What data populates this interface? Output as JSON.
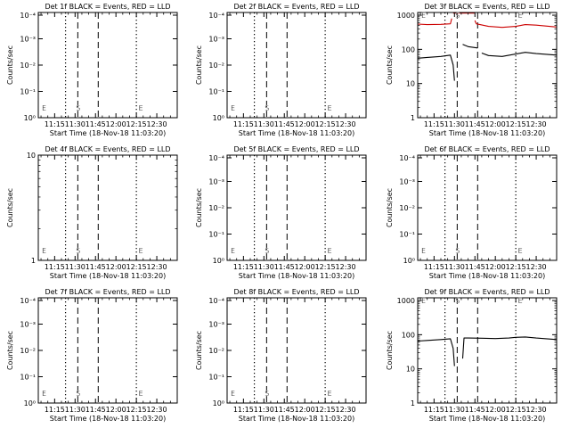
{
  "chart_data": [
    {
      "type": "line",
      "title": "Det 1f BLACK = Events, RED = LLD",
      "ylabel": "Counts/sec",
      "xlabel": "Start Time (18-Nov-18 11:03:20)",
      "y_ticks": [
        "10⁰",
        "10⁻¹",
        "10⁻²",
        "10⁻³",
        "10⁻⁴"
      ],
      "y_scale": "stacked",
      "x_ticks": [
        "11:15",
        "11:30",
        "11:45",
        "12:00",
        "12:15",
        "12:30"
      ],
      "markers": [
        {
          "label": "E",
          "time": "11:06"
        },
        {
          "label": "S",
          "time": "11:31"
        },
        {
          "label": "E",
          "time": "12:17"
        }
      ],
      "series": []
    },
    {
      "type": "line",
      "title": "Det 2f BLACK = Events, RED = LLD",
      "ylabel": "Counts/sec",
      "xlabel": "Start Time (18-Nov-18 11:03:20)",
      "y_ticks": [
        "10⁰",
        "10⁻¹",
        "10⁻²",
        "10⁻³",
        "10⁻⁴"
      ],
      "y_scale": "stacked",
      "x_ticks": [
        "11:15",
        "11:30",
        "11:45",
        "12:00",
        "12:15",
        "12:30"
      ],
      "markers": [
        {
          "label": "E",
          "time": "11:06"
        },
        {
          "label": "S",
          "time": "11:31"
        },
        {
          "label": "E",
          "time": "12:17"
        }
      ],
      "series": []
    },
    {
      "type": "line",
      "title": "Det 3f BLACK = Events, RED = LLD",
      "ylabel": "Counts/sec",
      "xlabel": "Start Time (18-Nov-18 11:03:20)",
      "y_ticks": [
        "1",
        "10",
        "100",
        "1000"
      ],
      "y_scale": "log",
      "ylim": [
        1,
        1200
      ],
      "x_ticks": [
        "11:15",
        "11:30",
        "11:45",
        "12:00",
        "12:15",
        "12:30"
      ],
      "markers": [
        {
          "label": "E",
          "time": "11:06"
        },
        {
          "label": "S",
          "time": "11:31"
        },
        {
          "label": "E",
          "time": "12:17"
        }
      ],
      "series": [
        {
          "color": "#cc0000",
          "segments": [
            {
              "x": [
                "11:03",
                "11:10",
                "11:20",
                "11:27",
                "11:28"
              ],
              "y": [
                550,
                530,
                540,
                560,
                800
              ]
            },
            {
              "x": [
                "11:29",
                "11:30",
                "11:40",
                "11:45"
              ],
              "y": [
                1150,
                1150,
                1150,
                1150
              ]
            },
            {
              "x": [
                "11:45",
                "11:46",
                "11:55",
                "12:05",
                "12:15",
                "12:22",
                "12:30",
                "12:45"
              ],
              "y": [
                700,
                560,
                470,
                440,
                470,
                530,
                510,
                450
              ]
            }
          ]
        },
        {
          "color": "#000000",
          "segments": [
            {
              "x": [
                "11:03",
                "11:10",
                "11:20",
                "11:27",
                "11:29",
                "11:30"
              ],
              "y": [
                55,
                58,
                62,
                68,
                35,
                12
              ]
            },
            {
              "x": [
                "11:36",
                "11:38",
                "11:40",
                "11:47"
              ],
              "y": [
                140,
                130,
                120,
                110
              ]
            },
            {
              "x": [
                "11:50",
                "11:55",
                "12:05",
                "12:15",
                "12:22",
                "12:30",
                "12:45"
              ],
              "y": [
                78,
                66,
                62,
                73,
                82,
                75,
                68
              ]
            }
          ]
        }
      ]
    },
    {
      "type": "line",
      "title": "Det 4f BLACK = Events, RED = LLD",
      "ylabel": "Counts/sec",
      "xlabel": "Start Time (18-Nov-18 11:03:20)",
      "y_ticks": [
        "1",
        "10"
      ],
      "y_scale": "log",
      "ylim": [
        1,
        10
      ],
      "x_ticks": [
        "11:15",
        "11:30",
        "11:45",
        "12:00",
        "12:15",
        "12:30"
      ],
      "markers": [
        {
          "label": "E",
          "time": "11:06"
        },
        {
          "label": "S",
          "time": "11:31"
        },
        {
          "label": "E",
          "time": "12:17"
        }
      ],
      "series": []
    },
    {
      "type": "line",
      "title": "Det 5f BLACK = Events, RED = LLD",
      "ylabel": "Counts/sec",
      "xlabel": "Start Time (18-Nov-18 11:03:20)",
      "y_ticks": [
        "10⁰",
        "10⁻¹",
        "10⁻²",
        "10⁻³",
        "10⁻⁴"
      ],
      "y_scale": "stacked",
      "x_ticks": [
        "11:15",
        "11:30",
        "11:45",
        "12:00",
        "12:15",
        "12:30"
      ],
      "markers": [
        {
          "label": "E",
          "time": "11:06"
        },
        {
          "label": "S",
          "time": "11:31"
        },
        {
          "label": "E",
          "time": "12:17"
        }
      ],
      "series": []
    },
    {
      "type": "line",
      "title": "Det 6f BLACK = Events, RED = LLD",
      "ylabel": "Counts/sec",
      "xlabel": "Start Time (18-Nov-18 11:03:20)",
      "y_ticks": [
        "10⁰",
        "10⁻¹",
        "10⁻²",
        "10⁻³",
        "10⁻⁴"
      ],
      "y_scale": "stacked",
      "x_ticks": [
        "11:15",
        "11:30",
        "11:45",
        "12:00",
        "12:15",
        "12:30"
      ],
      "markers": [
        {
          "label": "E",
          "time": "11:06"
        },
        {
          "label": "S",
          "time": "11:31"
        },
        {
          "label": "E",
          "time": "12:17"
        }
      ],
      "series": []
    },
    {
      "type": "line",
      "title": "Det 7f BLACK = Events, RED = LLD",
      "ylabel": "Counts/sec",
      "xlabel": "Start Time (18-Nov-18 11:03:20)",
      "y_ticks": [
        "10⁰",
        "10⁻¹",
        "10⁻²",
        "10⁻³",
        "10⁻⁴"
      ],
      "y_scale": "stacked",
      "x_ticks": [
        "11:15",
        "11:30",
        "11:45",
        "12:00",
        "12:15",
        "12:30"
      ],
      "markers": [
        {
          "label": "E",
          "time": "11:06"
        },
        {
          "label": "S",
          "time": "11:31"
        },
        {
          "label": "E",
          "time": "12:17"
        }
      ],
      "series": []
    },
    {
      "type": "line",
      "title": "Det 8f BLACK = Events, RED = LLD",
      "ylabel": "Counts/sec",
      "xlabel": "Start Time (18-Nov-18 11:03:20)",
      "y_ticks": [
        "10⁰",
        "10⁻¹",
        "10⁻²",
        "10⁻³",
        "10⁻⁴"
      ],
      "y_scale": "stacked",
      "x_ticks": [
        "11:15",
        "11:30",
        "11:45",
        "12:00",
        "12:15",
        "12:30"
      ],
      "markers": [
        {
          "label": "E",
          "time": "11:06"
        },
        {
          "label": "S",
          "time": "11:31"
        },
        {
          "label": "E",
          "time": "12:17"
        }
      ],
      "series": []
    },
    {
      "type": "line",
      "title": "Det 9f BLACK = Events, RED = LLD",
      "ylabel": "Counts/sec",
      "xlabel": "Start Time (18-Nov-18 11:03:20)",
      "y_ticks": [
        "1",
        "10",
        "100",
        "1000"
      ],
      "y_scale": "log",
      "ylim": [
        1,
        1200
      ],
      "x_ticks": [
        "11:15",
        "11:30",
        "11:45",
        "12:00",
        "12:15",
        "12:30"
      ],
      "markers": [
        {
          "label": "E",
          "time": "11:06"
        },
        {
          "label": "S",
          "time": "11:31"
        },
        {
          "label": "E",
          "time": "12:17"
        }
      ],
      "series": [
        {
          "color": "#000000",
          "segments": [
            {
              "x": [
                "11:03",
                "11:10",
                "11:20",
                "11:27",
                "11:29",
                "11:30"
              ],
              "y": [
                65,
                68,
                72,
                76,
                40,
                12
              ]
            },
            {
              "x": [
                "11:36",
                "11:37",
                "11:40",
                "11:50",
                "12:00",
                "12:10",
                "12:15",
                "12:22",
                "12:30",
                "12:45"
              ],
              "y": [
                20,
                80,
                80,
                79,
                77,
                80,
                84,
                86,
                80,
                72
              ]
            }
          ]
        }
      ]
    }
  ],
  "chart_style": {
    "x_range": [
      "11:03",
      "12:45"
    ],
    "dotted_lines": [
      "11:23",
      "12:15"
    ],
    "dashed_lines": [
      "11:32",
      "11:47"
    ],
    "axis_color": "#000000",
    "background": "#ffffff"
  }
}
